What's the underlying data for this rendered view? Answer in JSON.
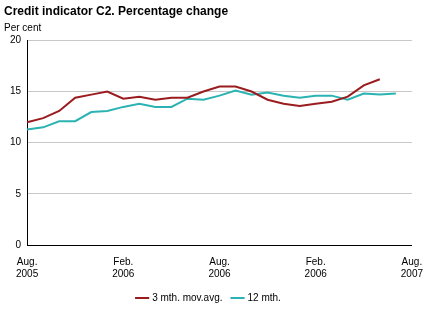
{
  "chart_data": {
    "type": "line",
    "title": "Credit indicator C2. Percentage change",
    "y_label": "Per cent",
    "categories": [
      "Aug. 2005",
      null,
      null,
      null,
      null,
      null,
      "Feb. 2006",
      null,
      null,
      null,
      null,
      null,
      "Aug. 2006",
      null,
      null,
      null,
      null,
      null,
      "Feb. 2006",
      null,
      null,
      null,
      null,
      null,
      "Aug. 2007"
    ],
    "series": [
      {
        "name": "3 mth. mov.avg.",
        "color": "#9b1c1f",
        "values": [
          12.0,
          12.4,
          13.1,
          14.4,
          14.7,
          15.0,
          14.3,
          14.5,
          14.2,
          14.4,
          14.4,
          15.0,
          15.5,
          15.5,
          15.0,
          14.2,
          13.8,
          13.6,
          13.8,
          14.0,
          14.5,
          15.6,
          16.2,
          null,
          null
        ]
      },
      {
        "name": "12 mth.",
        "color": "#2bb3b3",
        "values": [
          11.3,
          11.5,
          12.1,
          12.1,
          13.0,
          13.1,
          13.5,
          13.8,
          13.5,
          13.5,
          14.3,
          14.2,
          14.6,
          15.1,
          14.7,
          14.9,
          14.6,
          14.4,
          14.6,
          14.6,
          14.2,
          14.8,
          14.7,
          14.8,
          null
        ]
      }
    ],
    "ylim": [
      0,
      20
    ],
    "yticks": [
      0,
      5,
      10,
      15,
      20
    ],
    "grid": true,
    "legend": "bottom"
  }
}
